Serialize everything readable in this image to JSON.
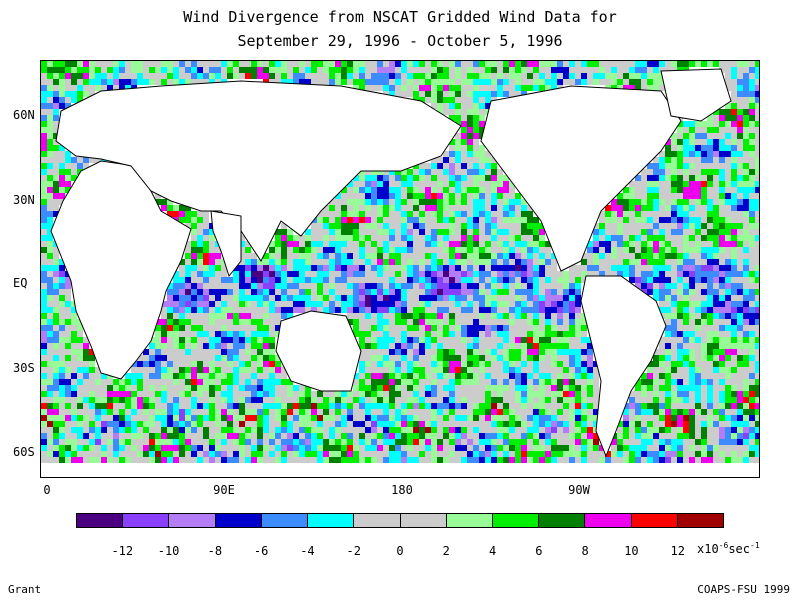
{
  "title": {
    "line1": "Wind Divergence from NSCAT Gridded Wind Data for",
    "line2": "September 29, 1996 - October 5, 1996"
  },
  "map": {
    "y_labels": [
      "60N",
      "30N",
      "EQ",
      "30S",
      "60S"
    ],
    "x_labels": [
      "0",
      "90E",
      "180",
      "90W"
    ]
  },
  "colorbar": {
    "colors": [
      "#4b0082",
      "#8a3ffc",
      "#b47cf5",
      "#0000cd",
      "#3c8cff",
      "#00ffff",
      "#cccccc",
      "#cccccc",
      "#98fb98",
      "#00ee00",
      "#008000",
      "#ee00ee",
      "#ff0000",
      "#a00000"
    ],
    "labels": [
      "-12",
      "-10",
      "-8",
      "-6",
      "-4",
      "-2",
      "0",
      "2",
      "4",
      "6",
      "8",
      "10",
      "12"
    ],
    "units_base": "x10",
    "units_exp": "-6",
    "units_suffix": "sec",
    "units_exp2": "-1"
  },
  "footer": {
    "left": "Grant",
    "right": "COAPS-FSU 1999"
  }
}
